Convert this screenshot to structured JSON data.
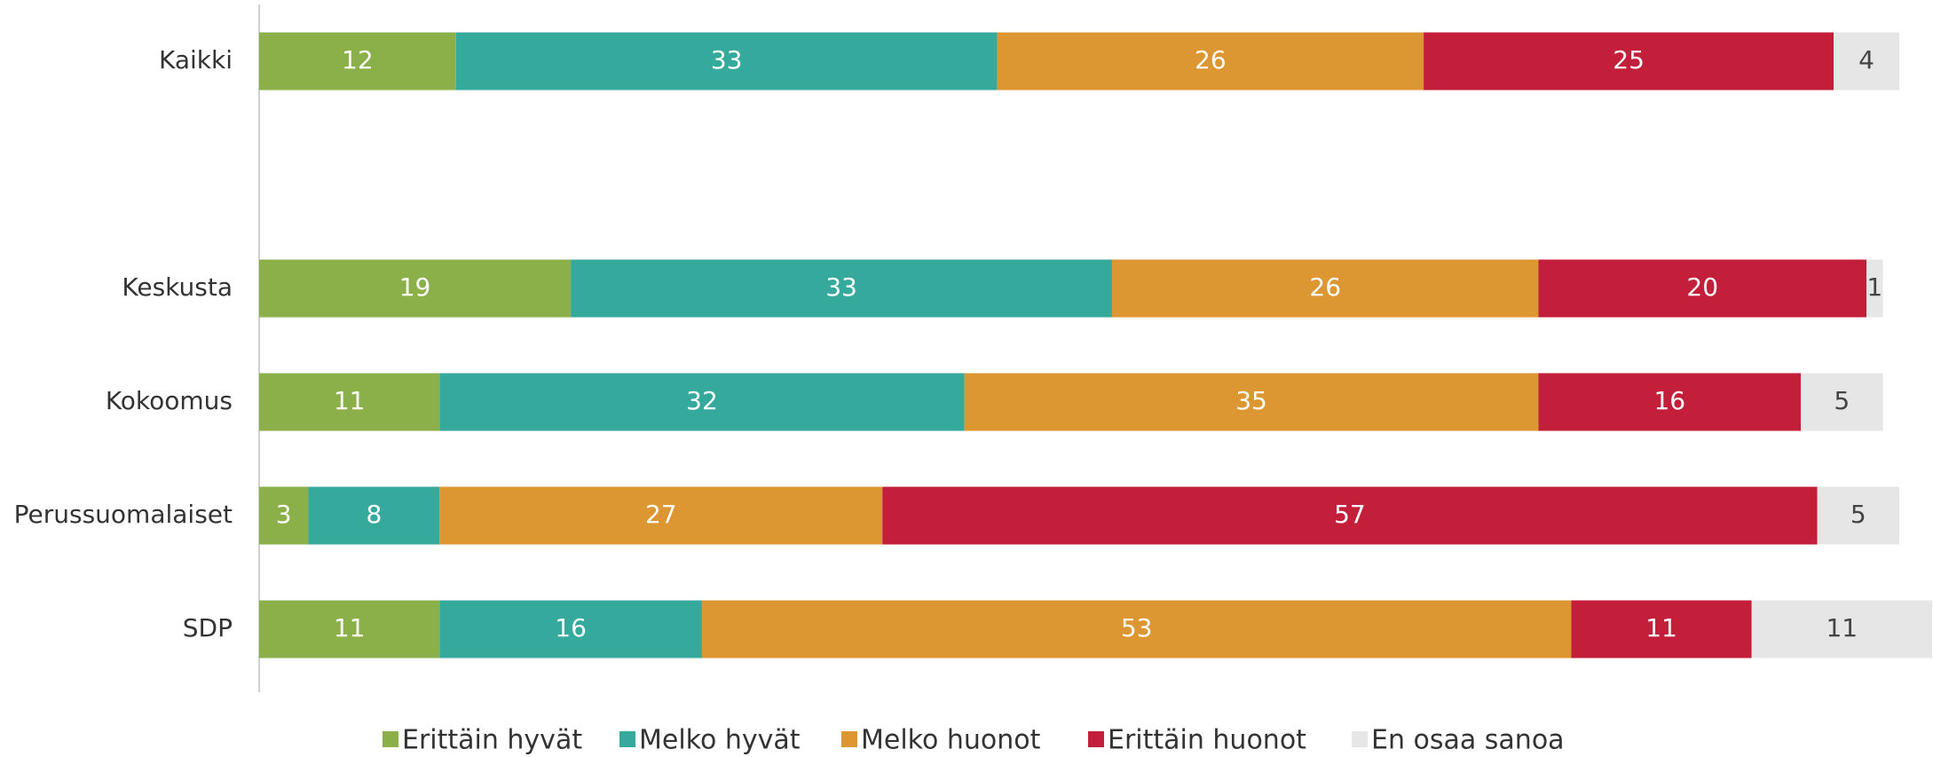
{
  "chart_data": {
    "type": "stacked-barh",
    "categories": [
      "Kaikki",
      null,
      "Keskusta",
      "Kokoomus",
      "Perussuomalaiset",
      "SDP"
    ],
    "series": [
      {
        "name": "Erittäin hyvät",
        "color": "#8bb04a",
        "values": [
          12,
          null,
          19,
          11,
          3,
          11
        ]
      },
      {
        "name": "Melko hyvät",
        "color": "#34a99c",
        "values": [
          33,
          null,
          33,
          32,
          8,
          16
        ]
      },
      {
        "name": "Melko huonot",
        "color": "#dd9732",
        "values": [
          26,
          null,
          26,
          35,
          27,
          53
        ]
      },
      {
        "name": "Erittäin huonot",
        "color": "#c41f3a",
        "values": [
          25,
          null,
          20,
          16,
          57,
          11
        ]
      },
      {
        "name": "En osaa sanoa",
        "color": "#e6e6e6",
        "values": [
          4,
          null,
          1,
          5,
          5,
          11
        ]
      }
    ],
    "xlim": [
      0,
      100
    ],
    "legend": "bottom"
  }
}
